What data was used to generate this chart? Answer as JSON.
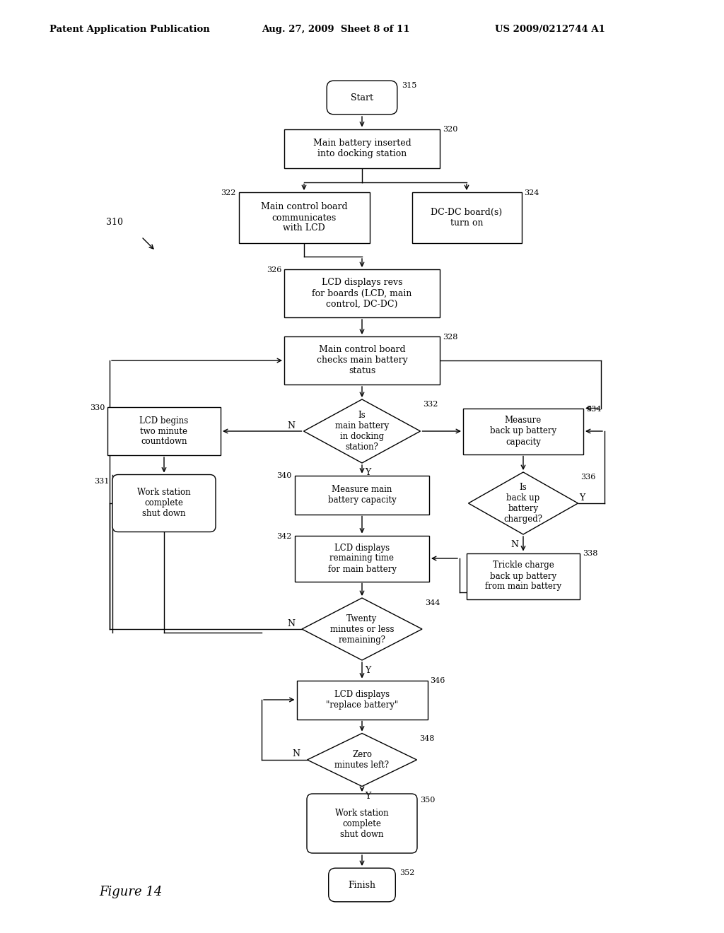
{
  "title_left": "Patent Application Publication",
  "title_center": "Aug. 27, 2009  Sheet 8 of 11",
  "title_right": "US 2009/0212744 A1",
  "figure_label": "Figure 14",
  "bg_color": "#ffffff",
  "line_color": "#000000",
  "text_color": "#000000",
  "fig_w": 10.24,
  "fig_h": 13.2,
  "dpi": 100
}
